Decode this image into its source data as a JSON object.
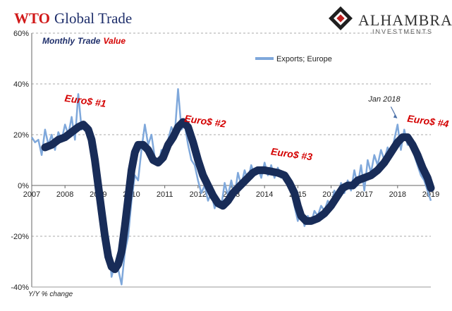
{
  "title": {
    "part1": "WTO",
    "part2": "Global Trade"
  },
  "logo": {
    "name": "ALHAMBRA",
    "sub": "INVESTMENTS",
    "icon": "alhambra-diamond-logo"
  },
  "subtitle": {
    "part1": "Monthly",
    "part2": "Trade",
    "part3": "Value"
  },
  "legend": {
    "label": "Exports; Europe",
    "color": "#7fa8db"
  },
  "footnote": "Y/Y % change",
  "annotations": [
    {
      "text": "Euro$ #1",
      "x": 2008.6,
      "y": 32
    },
    {
      "text": "Euro$ #2",
      "x": 2012.2,
      "y": 24
    },
    {
      "text": "Euro$ #3",
      "x": 2014.8,
      "y": 11
    },
    {
      "text": "Euro$ #4",
      "x": 2018.9,
      "y": 24
    },
    {
      "text": "Jan 2018",
      "x": 2017.6,
      "y": 33
    }
  ],
  "colors": {
    "raw": "#7fa8db",
    "trend": "#182c58",
    "grid": "#aaaaaa",
    "accent": "#d40000"
  },
  "chart_data": {
    "type": "line",
    "xlabel": "",
    "ylabel": "Y/Y % change",
    "xlim": [
      2007,
      2019
    ],
    "ylim": [
      -40,
      60
    ],
    "x_ticks": [
      "2007",
      "2008",
      "2009",
      "2010",
      "2011",
      "2012",
      "2013",
      "2014",
      "2015",
      "2016",
      "2017",
      "2018",
      "2019"
    ],
    "y_ticks": [
      "60%",
      "40%",
      "20%",
      "0%",
      "-20%",
      "-40%"
    ],
    "grid": "horizontal dashed",
    "legend_position": "top-center",
    "series": [
      {
        "name": "Exports; Europe",
        "style": "thin",
        "points": [
          [
            2007.0,
            19
          ],
          [
            2007.1,
            17
          ],
          [
            2007.2,
            18
          ],
          [
            2007.3,
            12
          ],
          [
            2007.4,
            22
          ],
          [
            2007.5,
            16
          ],
          [
            2007.6,
            20
          ],
          [
            2007.7,
            14
          ],
          [
            2007.8,
            21
          ],
          [
            2007.9,
            18
          ],
          [
            2008.0,
            24
          ],
          [
            2008.1,
            20
          ],
          [
            2008.2,
            27
          ],
          [
            2008.3,
            18
          ],
          [
            2008.4,
            36
          ],
          [
            2008.5,
            22
          ],
          [
            2008.6,
            24
          ],
          [
            2008.7,
            23
          ],
          [
            2008.8,
            14
          ],
          [
            2008.9,
            8
          ],
          [
            2009.0,
            5
          ],
          [
            2009.1,
            -12
          ],
          [
            2009.2,
            -24
          ],
          [
            2009.3,
            -20
          ],
          [
            2009.4,
            -36
          ],
          [
            2009.5,
            -31
          ],
          [
            2009.6,
            -33
          ],
          [
            2009.7,
            -39
          ],
          [
            2009.8,
            -26
          ],
          [
            2009.9,
            -20
          ],
          [
            2010.0,
            -6
          ],
          [
            2010.1,
            4
          ],
          [
            2010.2,
            2
          ],
          [
            2010.3,
            14
          ],
          [
            2010.4,
            24
          ],
          [
            2010.5,
            16
          ],
          [
            2010.6,
            20
          ],
          [
            2010.7,
            11
          ],
          [
            2010.8,
            8
          ],
          [
            2010.9,
            14
          ],
          [
            2011.0,
            12
          ],
          [
            2011.1,
            18
          ],
          [
            2011.2,
            23
          ],
          [
            2011.3,
            20
          ],
          [
            2011.4,
            38
          ],
          [
            2011.5,
            22
          ],
          [
            2011.6,
            24
          ],
          [
            2011.7,
            16
          ],
          [
            2011.8,
            10
          ],
          [
            2011.9,
            8
          ],
          [
            2012.0,
            2
          ],
          [
            2012.1,
            -3
          ],
          [
            2012.2,
            0
          ],
          [
            2012.3,
            -6
          ],
          [
            2012.4,
            -3
          ],
          [
            2012.5,
            -9
          ],
          [
            2012.6,
            -5
          ],
          [
            2012.7,
            -8
          ],
          [
            2012.8,
            1
          ],
          [
            2012.9,
            -4
          ],
          [
            2013.0,
            2
          ],
          [
            2013.1,
            -4
          ],
          [
            2013.2,
            5
          ],
          [
            2013.3,
            0
          ],
          [
            2013.4,
            6
          ],
          [
            2013.5,
            2
          ],
          [
            2013.6,
            8
          ],
          [
            2013.7,
            4
          ],
          [
            2013.8,
            7
          ],
          [
            2013.9,
            3
          ],
          [
            2014.0,
            9
          ],
          [
            2014.1,
            4
          ],
          [
            2014.2,
            8
          ],
          [
            2014.3,
            3
          ],
          [
            2014.4,
            7
          ],
          [
            2014.5,
            3
          ],
          [
            2014.6,
            4
          ],
          [
            2014.7,
            1
          ],
          [
            2014.8,
            -2
          ],
          [
            2014.9,
            -8
          ],
          [
            2015.0,
            -14
          ],
          [
            2015.1,
            -9
          ],
          [
            2015.2,
            -16
          ],
          [
            2015.3,
            -12
          ],
          [
            2015.4,
            -15
          ],
          [
            2015.5,
            -10
          ],
          [
            2015.6,
            -12
          ],
          [
            2015.7,
            -8
          ],
          [
            2015.8,
            -10
          ],
          [
            2015.9,
            -6
          ],
          [
            2016.0,
            -8
          ],
          [
            2016.1,
            -2
          ],
          [
            2016.2,
            -6
          ],
          [
            2016.3,
            1
          ],
          [
            2016.4,
            -3
          ],
          [
            2016.5,
            2
          ],
          [
            2016.6,
            -2
          ],
          [
            2016.7,
            6
          ],
          [
            2016.8,
            0
          ],
          [
            2016.9,
            8
          ],
          [
            2017.0,
            -2
          ],
          [
            2017.1,
            10
          ],
          [
            2017.2,
            5
          ],
          [
            2017.3,
            12
          ],
          [
            2017.4,
            8
          ],
          [
            2017.5,
            14
          ],
          [
            2017.6,
            10
          ],
          [
            2017.7,
            15
          ],
          [
            2017.8,
            12
          ],
          [
            2017.9,
            18
          ],
          [
            2018.0,
            24
          ],
          [
            2018.1,
            14
          ],
          [
            2018.2,
            22
          ],
          [
            2018.3,
            16
          ],
          [
            2018.4,
            18
          ],
          [
            2018.5,
            12
          ],
          [
            2018.6,
            8
          ],
          [
            2018.7,
            4
          ],
          [
            2018.8,
            2
          ],
          [
            2018.9,
            -2
          ],
          [
            2019.0,
            -6
          ]
        ]
      },
      {
        "name": "",
        "style": "thick-trend",
        "points": [
          [
            2007.4,
            15
          ],
          [
            2007.6,
            16
          ],
          [
            2007.8,
            18
          ],
          [
            2008.0,
            19
          ],
          [
            2008.2,
            21
          ],
          [
            2008.4,
            23
          ],
          [
            2008.55,
            24
          ],
          [
            2008.7,
            22
          ],
          [
            2008.8,
            18
          ],
          [
            2008.9,
            10
          ],
          [
            2009.0,
            0
          ],
          [
            2009.1,
            -10
          ],
          [
            2009.2,
            -20
          ],
          [
            2009.3,
            -28
          ],
          [
            2009.4,
            -32
          ],
          [
            2009.5,
            -33
          ],
          [
            2009.6,
            -31
          ],
          [
            2009.7,
            -26
          ],
          [
            2009.8,
            -16
          ],
          [
            2009.9,
            -5
          ],
          [
            2010.0,
            6
          ],
          [
            2010.1,
            13
          ],
          [
            2010.2,
            16
          ],
          [
            2010.35,
            16
          ],
          [
            2010.5,
            14
          ],
          [
            2010.65,
            10
          ],
          [
            2010.8,
            9
          ],
          [
            2010.95,
            11
          ],
          [
            2011.1,
            16
          ],
          [
            2011.25,
            19
          ],
          [
            2011.4,
            23
          ],
          [
            2011.55,
            25
          ],
          [
            2011.7,
            23
          ],
          [
            2011.85,
            17
          ],
          [
            2012.0,
            10
          ],
          [
            2012.15,
            4
          ],
          [
            2012.3,
            0
          ],
          [
            2012.45,
            -4
          ],
          [
            2012.6,
            -7
          ],
          [
            2012.75,
            -8
          ],
          [
            2012.9,
            -6
          ],
          [
            2013.05,
            -3
          ],
          [
            2013.2,
            -1
          ],
          [
            2013.35,
            1
          ],
          [
            2013.5,
            3
          ],
          [
            2013.65,
            5
          ],
          [
            2013.8,
            6
          ],
          [
            2014.0,
            6
          ],
          [
            2014.2,
            5.5
          ],
          [
            2014.4,
            5
          ],
          [
            2014.6,
            4
          ],
          [
            2014.75,
            1
          ],
          [
            2014.9,
            -3
          ],
          [
            2015.0,
            -8
          ],
          [
            2015.1,
            -12
          ],
          [
            2015.25,
            -14
          ],
          [
            2015.4,
            -14
          ],
          [
            2015.6,
            -13
          ],
          [
            2015.8,
            -11
          ],
          [
            2016.0,
            -8
          ],
          [
            2016.2,
            -4
          ],
          [
            2016.35,
            -1
          ],
          [
            2016.5,
            0
          ],
          [
            2016.65,
            0
          ],
          [
            2016.8,
            2
          ],
          [
            2017.0,
            3
          ],
          [
            2017.2,
            4
          ],
          [
            2017.4,
            6
          ],
          [
            2017.6,
            9
          ],
          [
            2017.8,
            13
          ],
          [
            2018.0,
            17
          ],
          [
            2018.15,
            19
          ],
          [
            2018.3,
            19
          ],
          [
            2018.45,
            16
          ],
          [
            2018.6,
            12
          ],
          [
            2018.75,
            7
          ],
          [
            2018.9,
            3
          ],
          [
            2019.0,
            -1
          ]
        ]
      }
    ]
  }
}
